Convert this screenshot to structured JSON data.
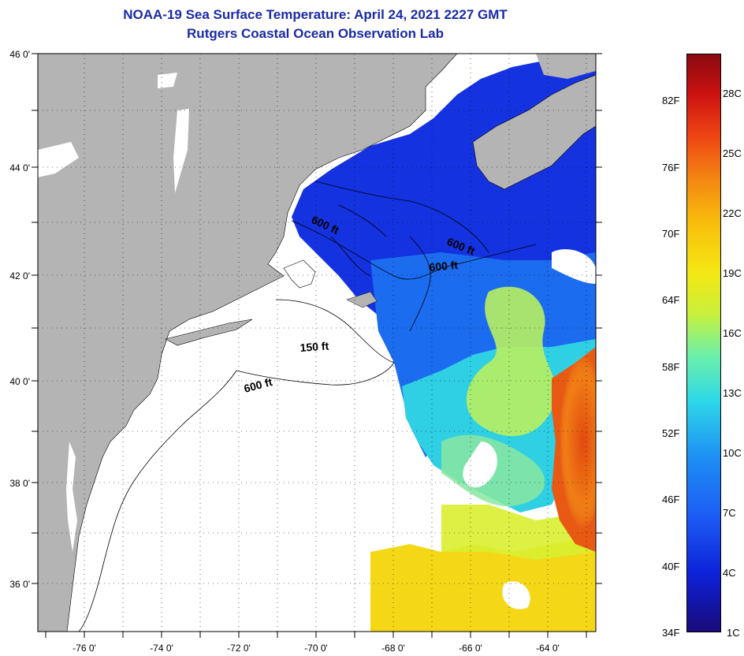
{
  "title": {
    "line1": "NOAA-19 Sea Surface Temperature:  April 24, 2021 2227 GMT",
    "line2": "Rutgers Coastal Ocean Observation Lab"
  },
  "map": {
    "lat_labels": [
      "46 0'",
      "44 0'",
      "42 0'",
      "40 0'",
      "38 0'",
      "36 0'"
    ],
    "lon_labels": [
      "-76 0'",
      "-74 0'",
      "-72 0'",
      "-70 0'",
      "-68 0'",
      "-66 0'",
      "-64 0'"
    ],
    "contour_labels": [
      "600 ft",
      "600 ft",
      "600 ft",
      "150 ft",
      "600 ft"
    ],
    "colors": {
      "land": "#b4b4b4",
      "cloud_no_data": "#ffffff",
      "cold_water": "#1432e0",
      "cool_water": "#1c8ef0",
      "mid_water": "#b8f060",
      "warm_water": "#f8d010",
      "gulf_stream": "#e85a14"
    }
  },
  "colorbar": {
    "fahrenheit_labels": [
      "82F",
      "76F",
      "70F",
      "64F",
      "58F",
      "52F",
      "46F",
      "40F",
      "34F"
    ],
    "celsius_labels": [
      "28C",
      "25C",
      "22C",
      "19C",
      "16C",
      "13C",
      "10C",
      "7C",
      "4C",
      "1C"
    ]
  }
}
